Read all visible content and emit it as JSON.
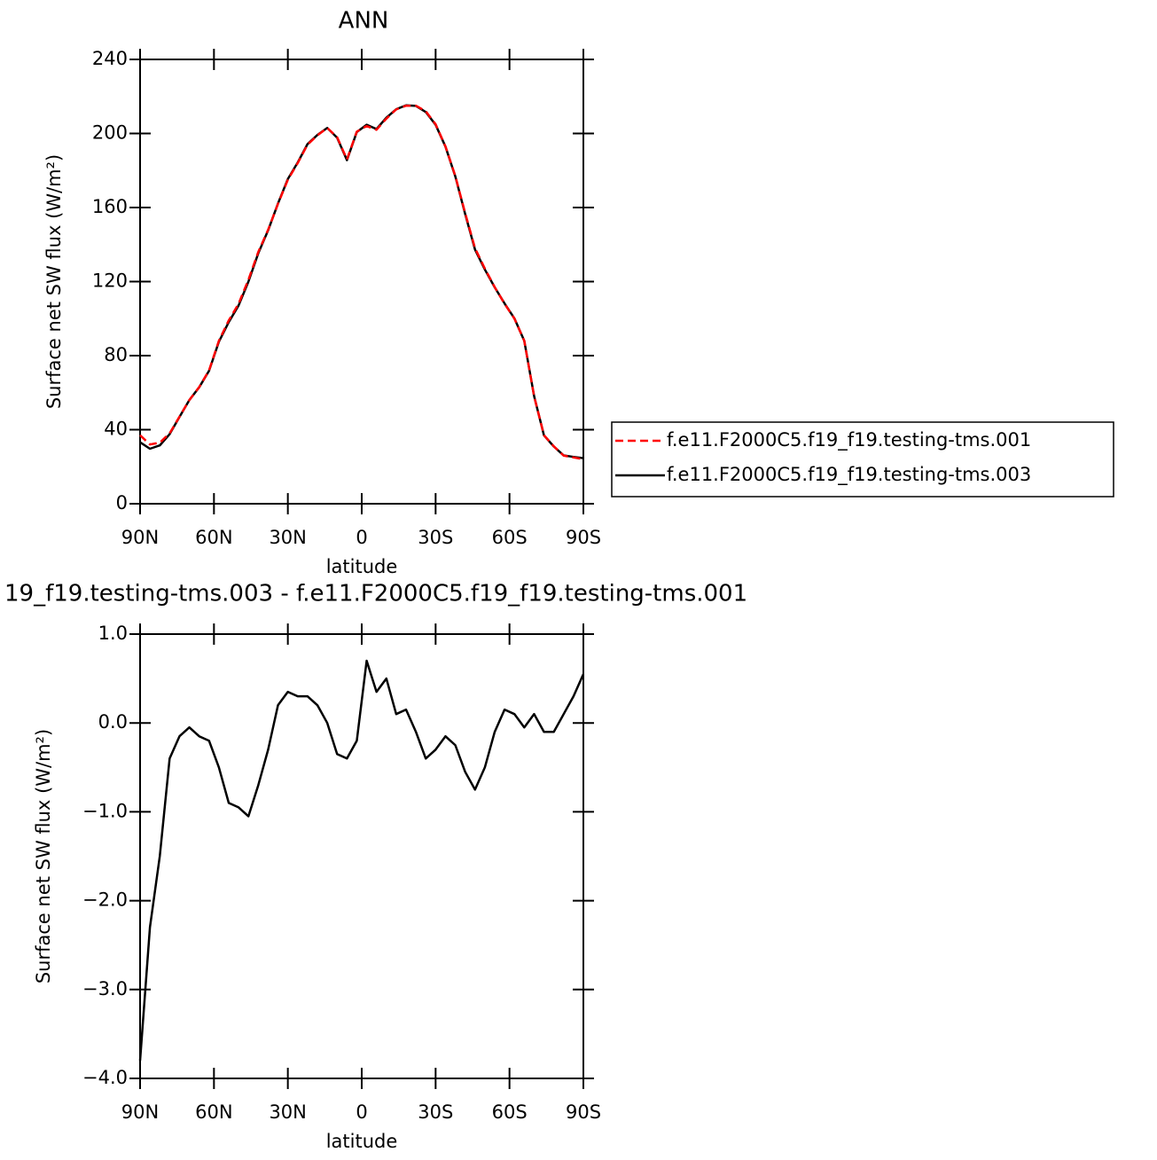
{
  "chart_data": [
    {
      "type": "line",
      "title": "ANN",
      "xlabel": "latitude",
      "ylabel": "Surface net SW flux (W/m²)",
      "x": [
        90,
        86,
        82,
        78,
        74,
        70,
        66,
        62,
        58,
        54,
        50,
        46,
        42,
        38,
        34,
        30,
        26,
        22,
        18,
        14,
        10,
        6,
        2,
        -2,
        -6,
        -10,
        -14,
        -18,
        -22,
        -26,
        -30,
        -34,
        -38,
        -42,
        -46,
        -50,
        -54,
        -58,
        -62,
        -66,
        -70,
        -74,
        -78,
        -82,
        -86,
        -90
      ],
      "series": [
        {
          "name": "f.e11.F2000C5.f19_f19.testing-tms.001",
          "color": "#ff0000",
          "dash": true,
          "values": [
            37,
            32,
            33,
            38,
            47,
            56,
            63,
            72,
            88,
            99,
            108,
            121,
            136,
            148,
            162,
            175,
            184,
            194,
            199,
            203,
            198,
            186,
            201,
            204,
            202,
            208,
            213,
            215,
            215,
            212,
            205,
            193,
            177,
            157,
            138,
            127,
            117,
            108,
            100,
            88,
            58,
            37,
            31,
            26,
            25,
            24
          ]
        },
        {
          "name": "f.e11.F2000C5.f19_f19.testing-tms.003",
          "color": "#000000",
          "dash": false,
          "values": [
            33.2,
            29.7,
            31.5,
            37.6,
            46.9,
            56,
            62.9,
            71.8,
            87.5,
            98.1,
            107.1,
            120,
            135.3,
            147.7,
            162.2,
            175.4,
            184.3,
            194.3,
            199.2,
            203,
            197.7,
            185.6,
            200.8,
            204.7,
            202.4,
            208.5,
            213.1,
            215.2,
            214.9,
            211.6,
            204.7,
            192.9,
            176.8,
            156.5,
            137.3,
            126.5,
            116.9,
            108.2,
            100.1,
            88,
            58.1,
            36.9,
            30.9,
            26.1,
            25.3,
            24.6
          ]
        }
      ],
      "xlim": [
        90,
        -90
      ],
      "xticks": [
        {
          "value": 90,
          "label": "90N"
        },
        {
          "value": 60,
          "label": "60N"
        },
        {
          "value": 30,
          "label": "30N"
        },
        0,
        {
          "value": -30,
          "label": "30S"
        },
        {
          "value": -60,
          "label": "60S"
        },
        {
          "value": -90,
          "label": "90S"
        }
      ],
      "ylim": [
        0,
        240
      ],
      "yticks": [
        0,
        40,
        80,
        120,
        160,
        200,
        240
      ],
      "legend": "right"
    },
    {
      "type": "line",
      "title": "19_f19.testing-tms.003 - f.e11.F2000C5.f19_f19.testing-tms.001",
      "xlabel": "latitude",
      "ylabel": "Surface net SW flux (W/m²)",
      "x": [
        90,
        86,
        82,
        78,
        74,
        70,
        66,
        62,
        58,
        54,
        50,
        46,
        42,
        38,
        34,
        30,
        26,
        22,
        18,
        14,
        10,
        6,
        2,
        -2,
        -6,
        -10,
        -14,
        -18,
        -22,
        -26,
        -30,
        -34,
        -38,
        -42,
        -46,
        -50,
        -54,
        -58,
        -62,
        -66,
        -70,
        -74,
        -78,
        -82,
        -86,
        -90
      ],
      "series": [
        {
          "color": "#000000",
          "dash": false,
          "values": [
            -3.8,
            -2.3,
            -1.5,
            -0.4,
            -0.15,
            -0.05,
            -0.15,
            -0.2,
            -0.5,
            -0.9,
            -0.95,
            -1.05,
            -0.7,
            -0.3,
            0.2,
            0.35,
            0.3,
            0.3,
            0.2,
            0,
            -0.35,
            -0.4,
            -0.2,
            0.7,
            0.35,
            0.5,
            0.1,
            0.15,
            -0.1,
            -0.4,
            -0.3,
            -0.15,
            -0.25,
            -0.55,
            -0.75,
            -0.5,
            -0.1,
            0.15,
            0.1,
            -0.05,
            0.1,
            -0.1,
            -0.1,
            0.1,
            0.3,
            0.55
          ]
        }
      ],
      "xlim": [
        90,
        -90
      ],
      "xticks": [
        {
          "value": 90,
          "label": "90N"
        },
        {
          "value": 60,
          "label": "60N"
        },
        {
          "value": 30,
          "label": "30N"
        },
        0,
        {
          "value": -30,
          "label": "30S"
        },
        {
          "value": -60,
          "label": "60S"
        },
        {
          "value": -90,
          "label": "90S"
        }
      ],
      "ylim": [
        -4,
        1
      ],
      "yticks": [
        {
          "value": -4,
          "label": "−4.0"
        },
        {
          "value": -3,
          "label": "−3.0"
        },
        {
          "value": -2,
          "label": "−2.0"
        },
        {
          "value": -1,
          "label": "−1.0"
        },
        {
          "value": 0,
          "label": "0.0"
        },
        {
          "value": 1,
          "label": "1.0"
        }
      ]
    }
  ]
}
